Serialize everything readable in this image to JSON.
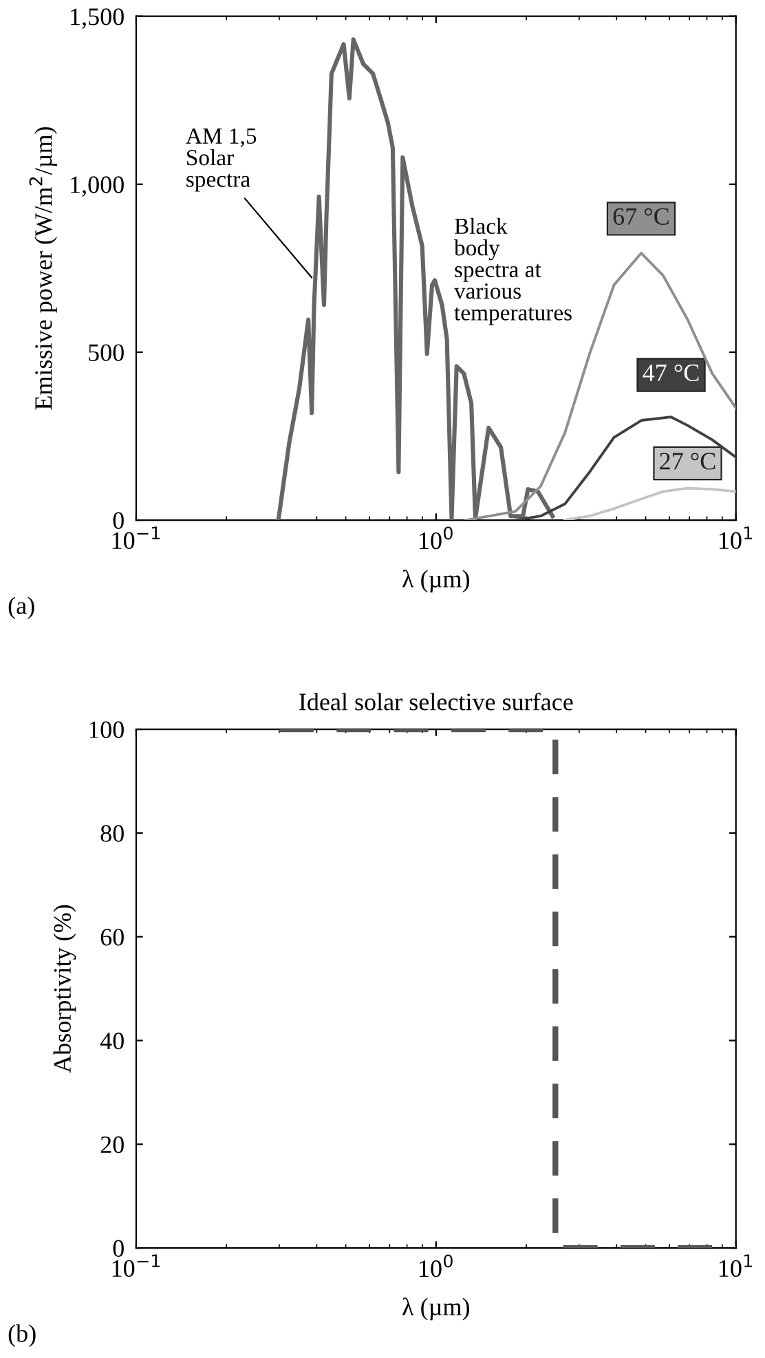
{
  "chart_data": [
    {
      "type": "line",
      "xlabel": "λ (µm)",
      "ylabel": "Emissive power (W/m$^{2}$/µm)",
      "log": "x",
      "grid": false,
      "legend": false,
      "marker": "none",
      "line_style": "solid",
      "xlim": [
        0.1,
        10
      ],
      "xticks": [
        {
          "value": 0.1,
          "label": "10$^{−1}$"
        },
        {
          "value": 1,
          "label": "10$^{0}$"
        },
        {
          "value": 10,
          "label": "10$^{1}$"
        }
      ],
      "ylim": [
        0,
        1500
      ],
      "yticks": [
        0,
        500,
        {
          "value": 1000,
          "label": "1,000"
        },
        {
          "value": 1500,
          "label": "1,500"
        }
      ],
      "series": [
        {
          "color": "#666666",
          "x": [
            0.298,
            0.324,
            0.35,
            0.375,
            0.385,
            0.392,
            0.407,
            0.423,
            0.431,
            0.448,
            0.492,
            0.514,
            0.53,
            0.572,
            0.616,
            0.653,
            0.691,
            0.717,
            0.75,
            0.774,
            0.834,
            0.899,
            0.933,
            0.97,
            0.99,
            1.047,
            1.087,
            1.127,
            1.171,
            1.239,
            1.311,
            1.352,
            1.497,
            1.645,
            1.773,
            1.949,
            2.025,
            2.185,
            2.447
          ],
          "values": [
            0,
            231,
            392,
            597,
            319,
            641,
            963,
            641,
            904,
            1329,
            1417,
            1256,
            1431,
            1358,
            1329,
            1256,
            1183,
            1109,
            143,
            1080,
            934,
            817,
            495,
            700,
            714,
            641,
            539,
            4,
            458,
            436,
            348,
            4,
            275,
            217,
            12,
            12,
            92,
            85,
            12
          ]
        },
        {
          "name": "67 °C",
          "color": "#8f8f8f",
          "x": [
            1.26,
            1.84,
            2.23,
            2.69,
            3.25,
            3.92,
            4.83,
            5.71,
            6.9,
            8.34,
            10
          ],
          "values": [
            0,
            26,
            100,
            260,
            495,
            700,
            795,
            729,
            597,
            436,
            334
          ]
        },
        {
          "name": "47 °C",
          "color": "#404040",
          "x": [
            1.84,
            2.23,
            2.69,
            3.25,
            3.92,
            4.84,
            6.08,
            6.9,
            8.34,
            10
          ],
          "values": [
            0,
            12,
            48,
            143,
            246,
            297,
            307,
            282,
            239,
            187
          ]
        },
        {
          "name": "27 °C",
          "color": "#c4c4c4",
          "x": [
            2.69,
            3.25,
            3.92,
            4.84,
            5.71,
            6.9,
            8.34,
            10
          ],
          "values": [
            0,
            12,
            34,
            63,
            85,
            95,
            92,
            85
          ]
        }
      ],
      "annotations": [
        {
          "text": "AM 1,5\nSolar\nspectra",
          "x": 0.385,
          "y": 722
        },
        "Black\nbody\nspectra at\nvarious\ntemperatures",
        "(a)"
      ]
    },
    {
      "type": "line",
      "title": "Ideal solar selective surface",
      "xlabel": "λ (µm)",
      "ylabel": "Absorptivity (%)",
      "log": "x",
      "grid": false,
      "legend": false,
      "marker": "none",
      "line_style": "dashed",
      "xlim": [
        0.1,
        10
      ],
      "xticks": [
        {
          "value": 0.1,
          "label": "10$^{−1}$"
        },
        {
          "value": 1,
          "label": "10$^{0}$"
        },
        {
          "value": 10,
          "label": "10$^{1}$"
        }
      ],
      "ylim": [
        0,
        100
      ],
      "yticks": [
        0,
        20,
        40,
        60,
        80,
        100
      ],
      "series": [
        {
          "color": "#555555",
          "x": [
            0.3,
            2.5,
            2.5,
            10
          ],
          "values": [
            100,
            100,
            0,
            0
          ]
        }
      ],
      "annotations": [
        "(b)"
      ]
    }
  ]
}
